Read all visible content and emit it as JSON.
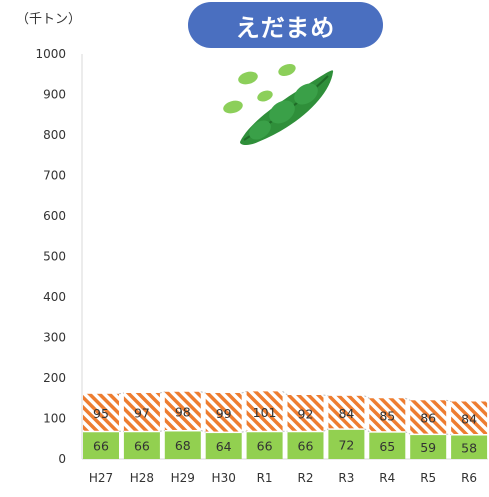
{
  "header": {
    "title": "えだまめ",
    "unit": "（千トン）"
  },
  "colors": {
    "title_bg": "#4a6fc0",
    "green": "#92d050",
    "orange": "#ed7d31",
    "line": "#bfbfbf"
  },
  "icon": "edamame-pod-icon",
  "chart_data": {
    "type": "bar",
    "stacked": true,
    "categories": [
      "H27",
      "H28",
      "H29",
      "H30",
      "R1",
      "R2",
      "R3",
      "R4",
      "R5",
      "R6"
    ],
    "series": [
      {
        "values": [
          66,
          66,
          68,
          64,
          66,
          66,
          72,
          65,
          59,
          58
        ],
        "color": "#92d050",
        "pattern": "solid"
      },
      {
        "values": [
          95,
          97,
          98,
          99,
          101,
          92,
          84,
          85,
          86,
          84
        ],
        "color": "#ed7d31",
        "pattern": "diagonal-stripes"
      }
    ],
    "ylim": [
      0,
      1000
    ],
    "yticks": [
      0,
      100,
      200,
      300,
      400,
      500,
      600,
      700,
      800,
      900,
      1000
    ],
    "grid": false,
    "title": "えだまめ",
    "ylabel": "（千トン）",
    "xlabel": ""
  }
}
